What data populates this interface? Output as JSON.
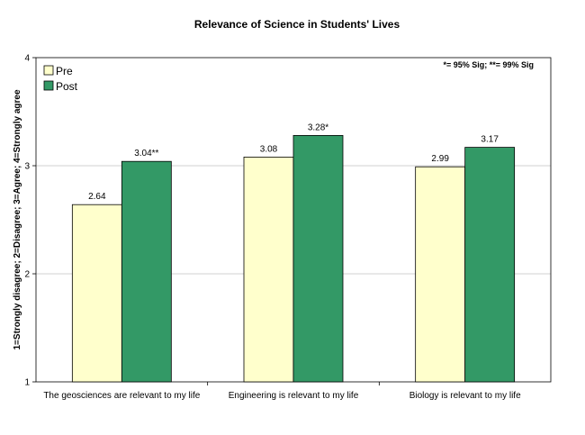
{
  "chart_data": {
    "type": "bar",
    "title": "Relevance of Science in Students' Lives",
    "xlabel": "",
    "ylabel": "1=Strongly disagree; 2=Disagree; 3=Agree; 4=Strongly agree",
    "ylim": [
      1,
      4
    ],
    "yticks": [
      "1",
      "2",
      "3",
      "4"
    ],
    "grid": true,
    "legend_position": "top-left",
    "significance_note": "*= 95% Sig; **= 99% Sig",
    "categories": [
      "The geosciences are relevant to my life",
      "Engineering is relevant to my life",
      "Biology is relevant to my life"
    ],
    "series": [
      {
        "name": "Pre",
        "color": "#ffffcc",
        "values": [
          2.64,
          3.08,
          2.99
        ],
        "labels": [
          "2.64",
          "3.08",
          "2.99"
        ]
      },
      {
        "name": "Post",
        "color": "#339966",
        "values": [
          3.04,
          3.28,
          3.17
        ],
        "labels": [
          "3.04**",
          "3.28*",
          "3.17"
        ]
      }
    ]
  }
}
